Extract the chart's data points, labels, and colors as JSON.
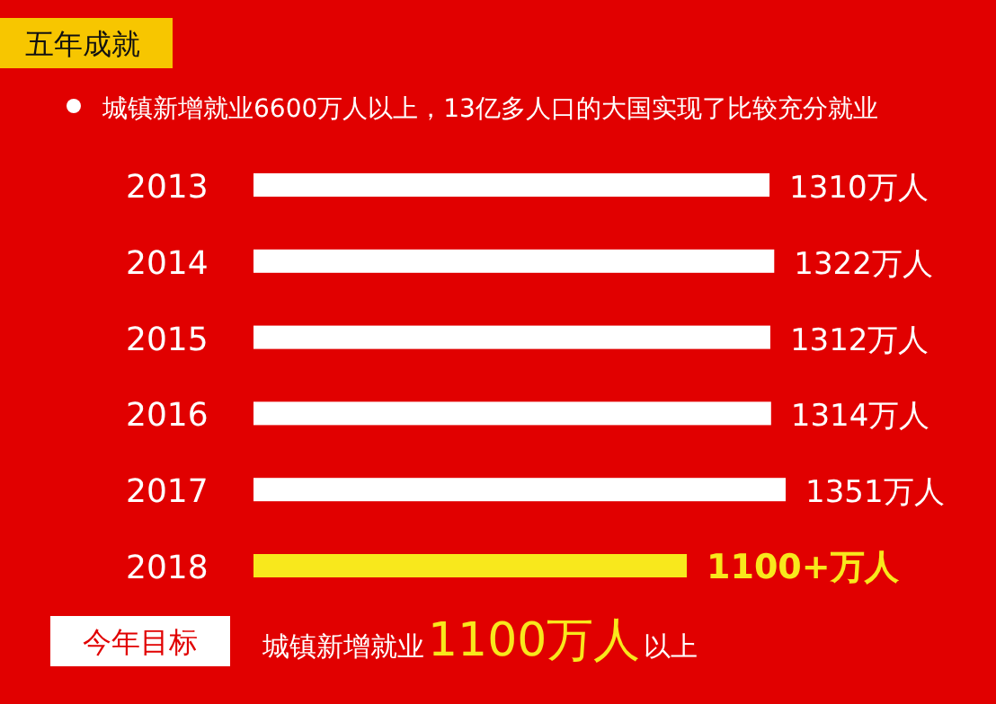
{
  "chart_data": {
    "type": "bar",
    "orientation": "horizontal",
    "title": "五年成就",
    "subtitle": "城镇新增就业6600万人以上，13亿多人口的大国实现了比较充分就业",
    "categories": [
      "2013",
      "2014",
      "2015",
      "2016",
      "2017",
      "2018"
    ],
    "values": [
      1310,
      1322,
      1312,
      1314,
      1351,
      1100
    ],
    "value_labels": [
      "1310万人",
      "1322万人",
      "1312万人",
      "1314万人",
      "1351万人",
      "1100+万人"
    ],
    "colors": [
      "#ffffff",
      "#ffffff",
      "#ffffff",
      "#ffffff",
      "#ffffff",
      "#f8e81c"
    ],
    "annotations": [
      "今年目标",
      "城镇新增就业",
      "1100万人",
      "以上"
    ]
  }
}
